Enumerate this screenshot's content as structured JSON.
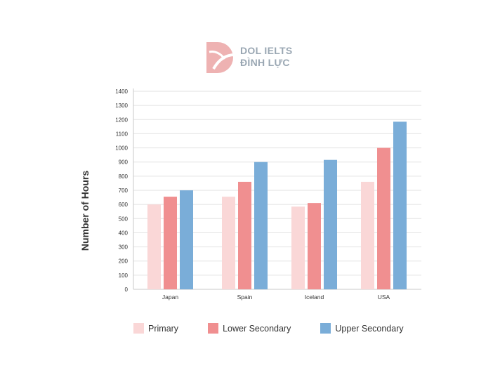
{
  "brand": {
    "line1": "DOL IELTS",
    "line2": "ĐÌNH LỰC",
    "color": "#e8a5a5"
  },
  "chart_data": {
    "type": "bar",
    "title": "",
    "xlabel": "",
    "ylabel": "Number of Hours",
    "ylim": [
      0,
      1400
    ],
    "yticks": [
      0,
      100,
      200,
      300,
      400,
      500,
      600,
      700,
      800,
      900,
      1000,
      1100,
      1200,
      1300,
      1400
    ],
    "grid": true,
    "legend_position": "bottom",
    "categories": [
      "Japan",
      "Spain",
      "Iceland",
      "USA"
    ],
    "series": [
      {
        "name": "Primary",
        "color": "#fad7d7",
        "values": [
          600,
          655,
          585,
          760
        ]
      },
      {
        "name": "Lower Secondary",
        "color": "#f08f90",
        "values": [
          655,
          760,
          610,
          1000
        ]
      },
      {
        "name": "Upper Secondary",
        "color": "#7aadd8",
        "values": [
          700,
          900,
          915,
          1185
        ]
      }
    ]
  }
}
